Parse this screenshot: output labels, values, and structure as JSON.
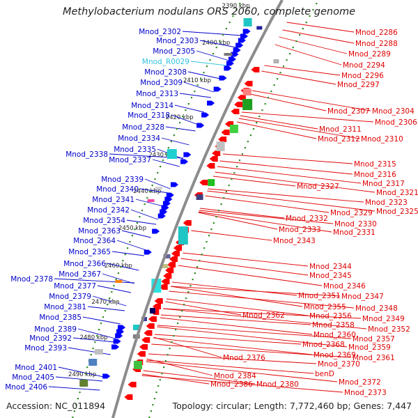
{
  "title": "Methylobacterium nodulans ORS 2060, complete genome",
  "accession": "Accession: NC_011894",
  "topology": "Topology: circular; Length: 7,772,460 bp; Genes: 7,447",
  "colors": {
    "backbone": "#8c8c8c",
    "forward_label": "#0000c8",
    "reverse_label": "#e00000",
    "rna_label": "#33c3e0",
    "tick_dots": "#2e8b20",
    "forward_feature": "#0000ff",
    "reverse_feature": "#ff0000"
  },
  "kbp_marks": [
    "2390 kbp",
    "2400 kbp",
    "2410 kbp",
    "2420 kbp",
    "2430 kbp",
    "2440 kbp",
    "2450 kbp",
    "2460 kbp",
    "2470 kbp",
    "2480 kbp",
    "2490 kbp"
  ],
  "left_labels": [
    "Mnod_2302",
    "Mnod_2303",
    "Mnod_2305",
    "Mnod_R0029",
    "Mnod_2308",
    "Mnod_2309",
    "Mnod_2313",
    "Mnod_2314",
    "Mnod_2318",
    "Mnod_2328",
    "Mnod_2334",
    "Mnod_2335",
    "Mnod_2338",
    "Mnod_2337",
    "Mnod_2339",
    "Mnod_2340",
    "Mnod_2341",
    "Mnod_2342",
    "Mnod_2354",
    "Mnod_2363",
    "Mnod_2364",
    "Mnod_2365",
    "Mnod_2366",
    "Mnod_2367",
    "Mnod_2378",
    "Mnod_2377",
    "Mnod_2379",
    "Mnod_2381",
    "Mnod_2385",
    "Mnod_2389",
    "Mnod_2392",
    "Mnod_2393",
    "Mnod_2401",
    "Mnod_2405",
    "Mnod_2406"
  ],
  "right_labels": [
    "Mnod_2286",
    "Mnod_2288",
    "Mnod_2289",
    "Mnod_2294",
    "Mnod_2296",
    "Mnod_2297",
    "Mnod_2307",
    "Mnod_2304",
    "Mnod_2306",
    "Mnod_2311",
    "Mnod_2312",
    "Mnod_2310",
    "Mnod_2315",
    "Mnod_2316",
    "Mnod_2317",
    "Mnod_2321",
    "Mnod_2327",
    "Mnod_2323",
    "Mnod_2329",
    "Mnod_2325",
    "Mnod_2332",
    "Mnod_2330",
    "Mnod_2333",
    "Mnod_2331",
    "Mnod_2343",
    "Mnod_2344",
    "Mnod_2345",
    "Mnod_2346",
    "Mnod_2347",
    "Mnod_2351",
    "Mnod_2348",
    "Mnod_2355",
    "Mnod_2349",
    "Mnod_2362",
    "Mnod_2356",
    "Mnod_2352",
    "Mnod_2358",
    "Mnod_2357",
    "Mnod_2360",
    "Mnod_2359",
    "Mnod_2368",
    "Mnod_2361",
    "Mnod_2369",
    "Mnod_2376",
    "Mnod_2370",
    "benD",
    "Mnod_2384",
    "Mnod_2372",
    "Mnod_2386",
    "Mnod_2380",
    "Mnod_2373"
  ]
}
